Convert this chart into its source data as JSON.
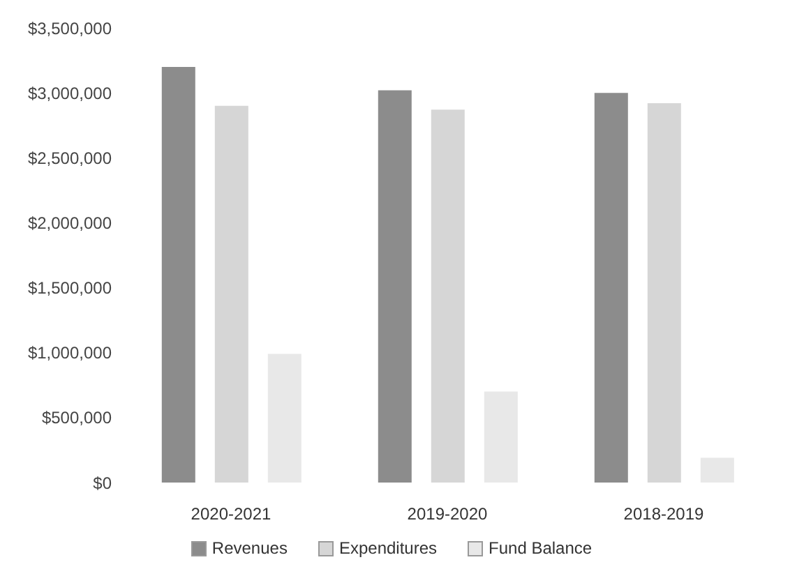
{
  "chart_data": {
    "type": "bar",
    "categories": [
      "2020-2021",
      "2019-2020",
      "2018-2019"
    ],
    "series": [
      {
        "name": "Revenues",
        "color": "#8c8c8c",
        "values": [
          3200000,
          3020000,
          3000000
        ]
      },
      {
        "name": "Expenditures",
        "color": "#d6d6d6",
        "values": [
          2900000,
          2870000,
          2920000
        ]
      },
      {
        "name": "Fund Balance",
        "color": "#e8e8e8",
        "values": [
          990000,
          700000,
          190000
        ]
      }
    ],
    "ylim": [
      0,
      3500000
    ],
    "yticks": [
      {
        "value": 0,
        "label": "$0"
      },
      {
        "value": 500000,
        "label": "$500,000"
      },
      {
        "value": 1000000,
        "label": "$1,000,000"
      },
      {
        "value": 1500000,
        "label": "$1,500,000"
      },
      {
        "value": 2000000,
        "label": "$2,000,000"
      },
      {
        "value": 2500000,
        "label": "$2,500,000"
      },
      {
        "value": 3000000,
        "label": "$3,000,000"
      },
      {
        "value": 3500000,
        "label": "$3,500,000"
      }
    ],
    "grid": false,
    "legend": "bottom"
  }
}
